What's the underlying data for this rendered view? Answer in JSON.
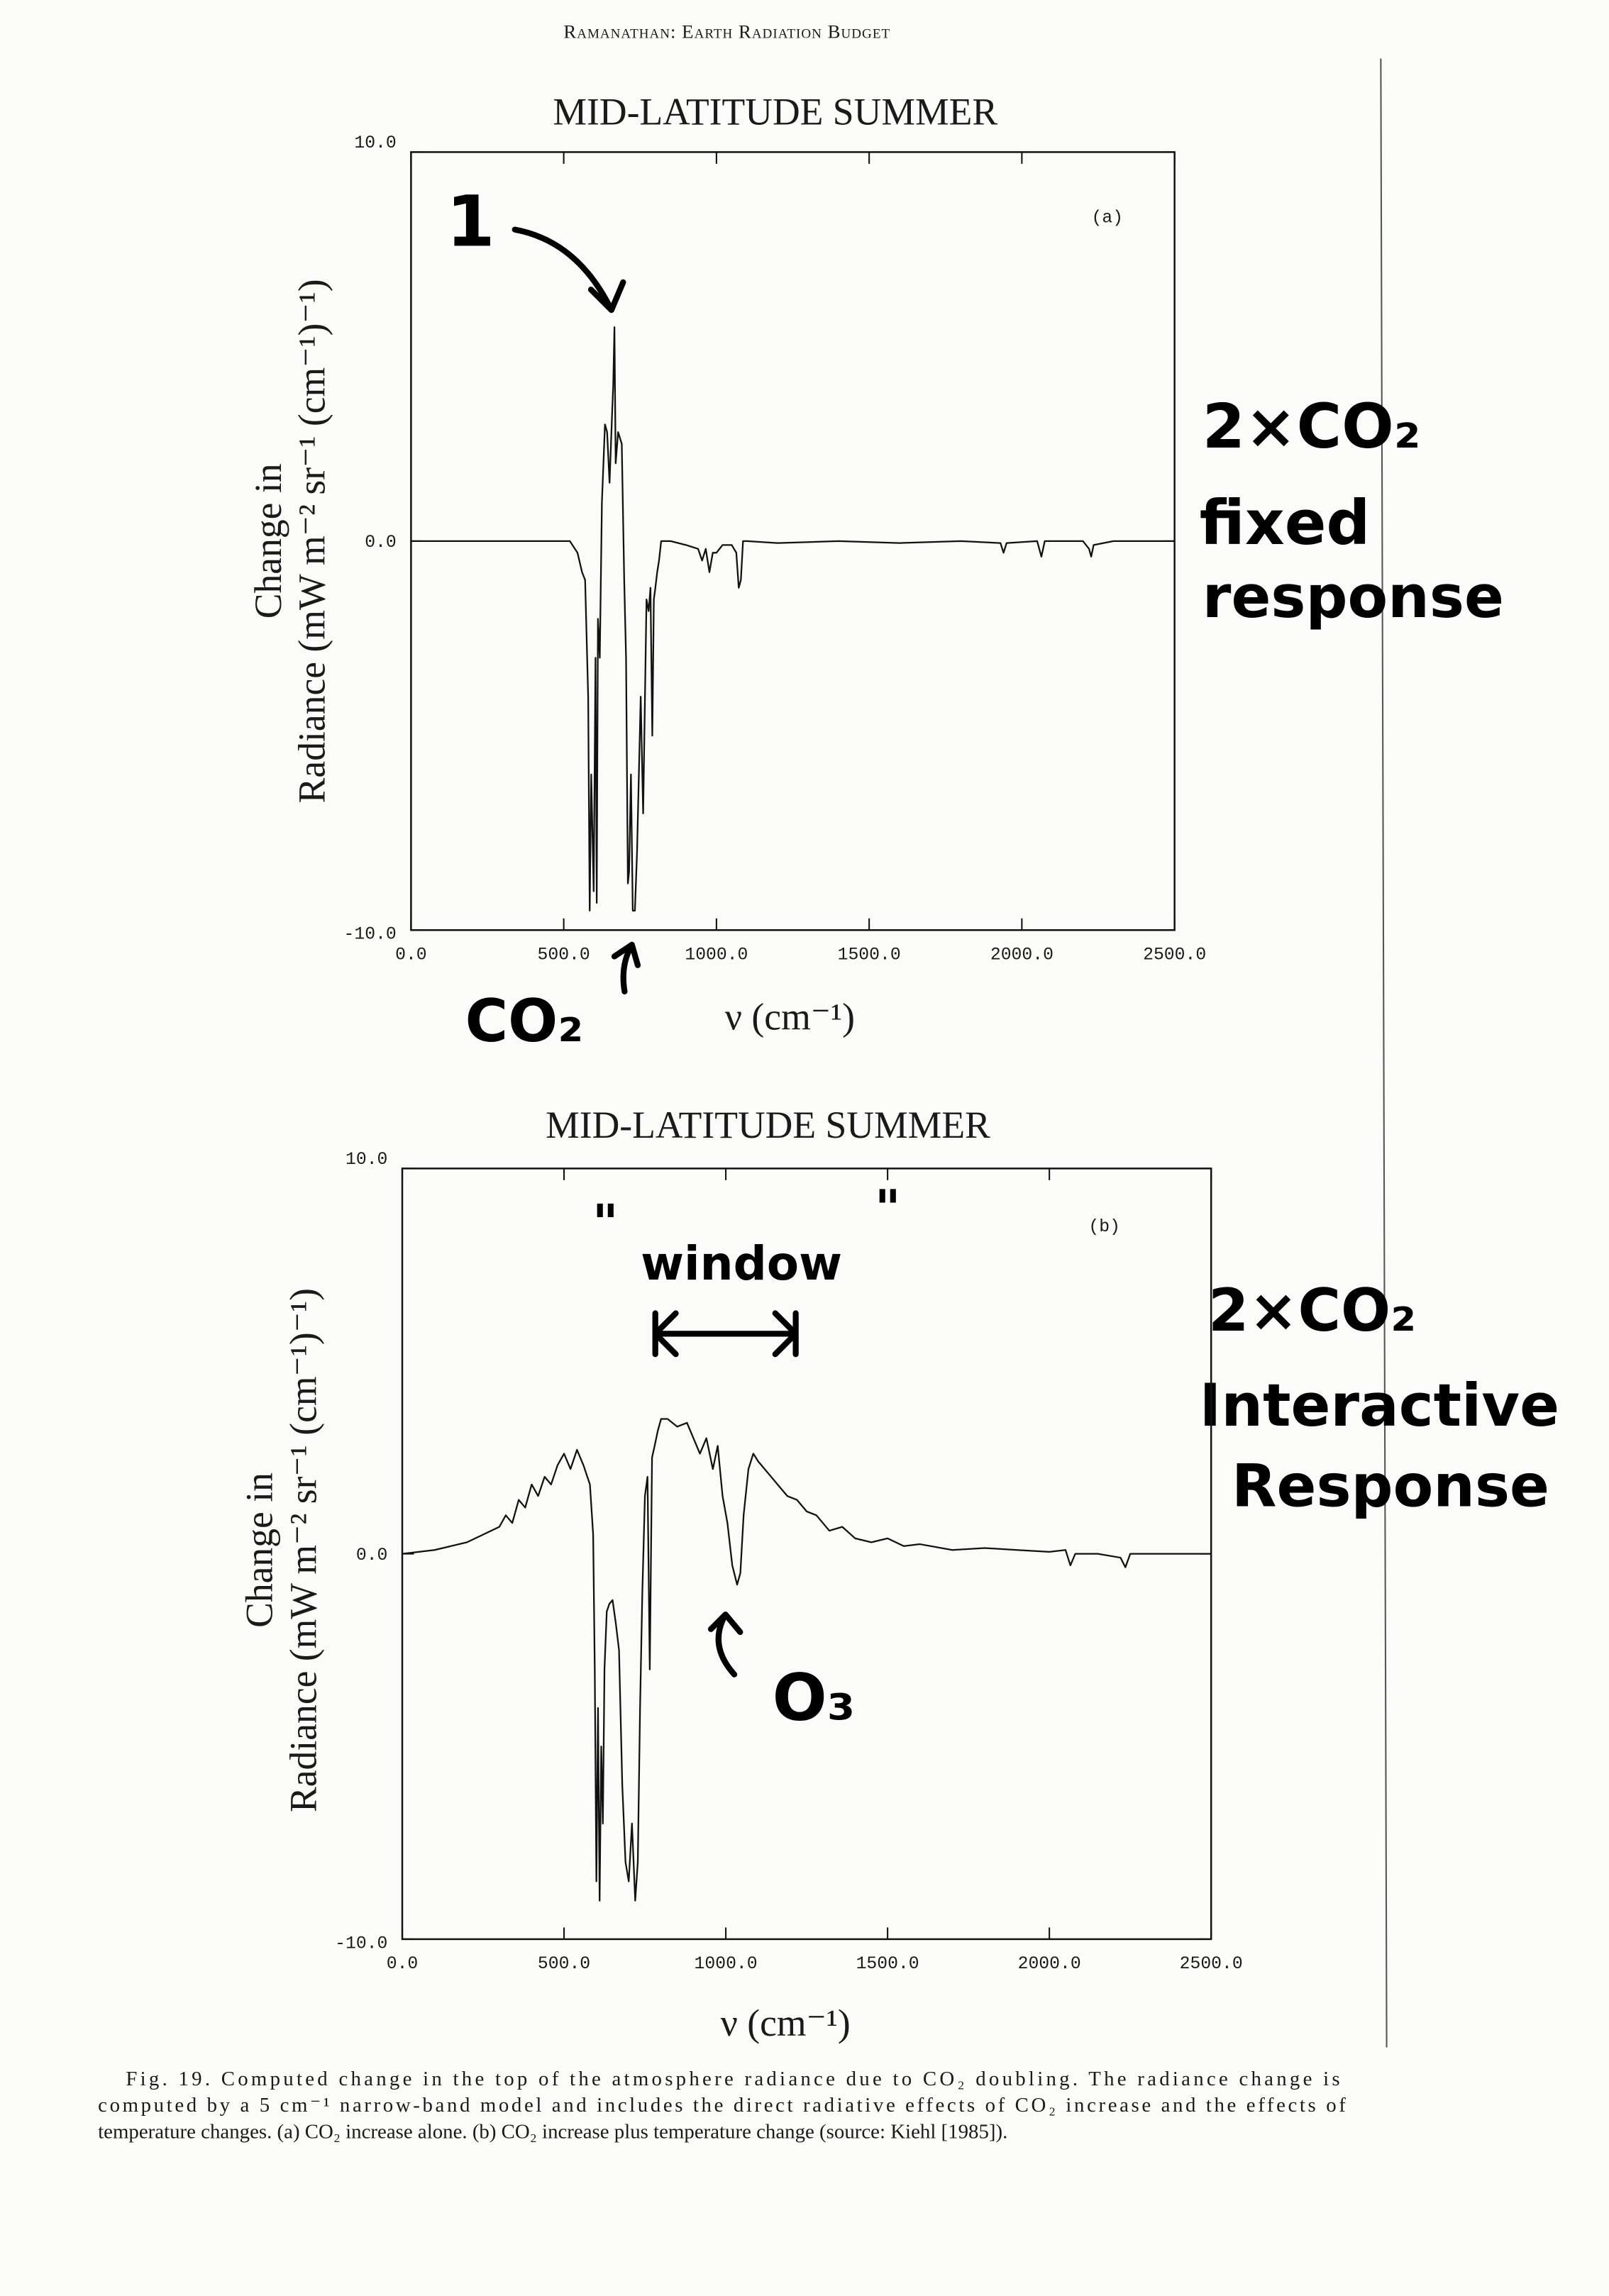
{
  "header": "Ramanathan: Earth Radiation Budget",
  "chart_data": [
    {
      "type": "line",
      "title": "MID-LATITUDE SUMMER",
      "panel_label": "(a)",
      "xlabel": "ν (cm⁻¹)",
      "ylabel": [
        "Change in",
        "Radiance (mW m⁻² sr⁻¹ (cm⁻¹)⁻¹)"
      ],
      "color": "#111111",
      "xlim": [
        0,
        2500
      ],
      "ylim": [
        -10,
        10
      ],
      "xticks": [
        {
          "value": 0,
          "label": "0.0"
        },
        {
          "value": 500,
          "label": "500.0"
        },
        {
          "value": 1000,
          "label": "1000.0"
        },
        {
          "value": 1500,
          "label": "1500.0"
        },
        {
          "value": 2000,
          "label": "2000.0"
        },
        {
          "value": 2500,
          "label": "2500.0"
        }
      ],
      "yticks": [
        {
          "value": -10,
          "label": "-10.0"
        },
        {
          "value": 0,
          "label": "0.0"
        },
        {
          "value": 10,
          "label": "10.0"
        }
      ],
      "x": [
        0,
        200,
        400,
        520,
        545,
        560,
        570,
        580,
        585,
        590,
        598,
        604,
        608,
        612,
        618,
        625,
        635,
        642,
        650,
        658,
        662,
        666,
        670,
        678,
        690,
        698,
        704,
        710,
        714,
        720,
        726,
        733,
        740,
        746,
        752,
        760,
        771,
        778,
        784,
        790,
        795,
        800,
        806,
        812,
        819,
        850,
        900,
        940,
        953,
        965,
        977,
        988,
        1000,
        1020,
        1050,
        1065,
        1073,
        1080,
        1087,
        1100,
        1200,
        1400,
        1600,
        1800,
        1930,
        1940,
        1950,
        2050,
        2064,
        2075,
        2200,
        2220,
        2227,
        2235,
        2300,
        2500
      ],
      "values": [
        0,
        0,
        0,
        0,
        -0.3,
        -0.8,
        -1,
        -4,
        -9.5,
        -6,
        -9,
        -3,
        -9.3,
        -2,
        -3,
        1,
        3,
        2.8,
        1.5,
        3.2,
        4,
        5.5,
        2,
        2.8,
        2.5,
        -1,
        -3,
        -8.8,
        -8.5,
        -6,
        -9.5,
        -9.5,
        -8,
        -6,
        -4,
        -7,
        -1.5,
        -1.8,
        -1.2,
        -5,
        -1.5,
        -1.2,
        -0.8,
        -0.5,
        0,
        0,
        -0.1,
        -0.2,
        -0.5,
        -0.2,
        -0.8,
        -0.3,
        -0.3,
        -0.1,
        -0.1,
        -0.3,
        -1.2,
        -1,
        0,
        0,
        -0.05,
        0,
        -0.05,
        0,
        -0.05,
        -0.3,
        -0.05,
        0,
        -0.4,
        0,
        0,
        -0.2,
        -0.4,
        -0.1,
        0,
        0
      ],
      "annotations": [
        "1",
        "CO₂",
        "2×CO₂",
        "fixed",
        "response"
      ]
    },
    {
      "type": "line",
      "title": "MID-LATITUDE SUMMER",
      "panel_label": "(b)",
      "xlabel": "ν (cm⁻¹)",
      "ylabel": [
        "Change in",
        "Radiance (mW m⁻² sr⁻¹ (cm⁻¹)⁻¹)"
      ],
      "color": "#111111",
      "xlim": [
        0,
        2500
      ],
      "ylim": [
        -10,
        10
      ],
      "xticks": [
        {
          "value": 0,
          "label": "0.0"
        },
        {
          "value": 500,
          "label": "500.0"
        },
        {
          "value": 1000,
          "label": "1000.0"
        },
        {
          "value": 1500,
          "label": "1500.0"
        },
        {
          "value": 2000,
          "label": "2000.0"
        },
        {
          "value": 2500,
          "label": "2500.0"
        }
      ],
      "yticks": [
        {
          "value": -10,
          "label": "-10.0"
        },
        {
          "value": 0,
          "label": "0.0"
        },
        {
          "value": 10,
          "label": "10.0"
        }
      ],
      "x": [
        0,
        100,
        200,
        250,
        300,
        320,
        340,
        360,
        380,
        400,
        420,
        440,
        460,
        480,
        500,
        520,
        540,
        560,
        580,
        590,
        595,
        600,
        605,
        610,
        615,
        620,
        625,
        632,
        640,
        650,
        660,
        670,
        680,
        690,
        700,
        710,
        720,
        728,
        735,
        742,
        750,
        758,
        765,
        772,
        780,
        790,
        800,
        820,
        850,
        880,
        900,
        920,
        940,
        960,
        975,
        990,
        1005,
        1020,
        1035,
        1045,
        1055,
        1070,
        1085,
        1100,
        1130,
        1160,
        1190,
        1220,
        1250,
        1280,
        1320,
        1360,
        1400,
        1450,
        1500,
        1550,
        1600,
        1700,
        1800,
        1900,
        2000,
        2050,
        2065,
        2080,
        2150,
        2220,
        2235,
        2250,
        2300,
        2500
      ],
      "values": [
        0,
        0.1,
        0.3,
        0.5,
        0.7,
        1.0,
        0.8,
        1.4,
        1.2,
        1.8,
        1.5,
        2.0,
        1.8,
        2.3,
        2.6,
        2.2,
        2.7,
        2.3,
        1.8,
        0.5,
        -3,
        -8.5,
        -4,
        -9,
        -5,
        -7,
        -3,
        -1.5,
        -1.3,
        -1.2,
        -1.8,
        -2.5,
        -6,
        -8,
        -8.5,
        -7,
        -9,
        -8,
        -4,
        -1,
        1.5,
        2,
        -3,
        2.5,
        2.8,
        3.2,
        3.5,
        3.5,
        3.3,
        3.4,
        3,
        2.6,
        3,
        2.2,
        2.8,
        1.5,
        0.8,
        -0.3,
        -0.8,
        -0.5,
        1,
        2.2,
        2.6,
        2.4,
        2.1,
        1.8,
        1.5,
        1.4,
        1.1,
        1.0,
        0.6,
        0.7,
        0.4,
        0.3,
        0.4,
        0.2,
        0.25,
        0.1,
        0.15,
        0.1,
        0.05,
        0.1,
        -0.3,
        0,
        0,
        -0.1,
        -0.35,
        0,
        0,
        0
      ],
      "annotations": [
        "\"",
        "\"",
        "window",
        "2×CO₂",
        "Interactive",
        "Response",
        "O₃"
      ]
    }
  ],
  "caption": [
    "Fig. 19.  Computed change in the top of the atmosphere radiance due to CO₂ doubling. The radiance change is",
    "computed by a 5 cm⁻¹ narrow-band model and includes the direct radiative effects of CO₂ increase and the effects of",
    "temperature changes. (a) CO₂ increase alone. (b) CO₂ increase plus temperature change (source: Kiehl [1985])."
  ]
}
